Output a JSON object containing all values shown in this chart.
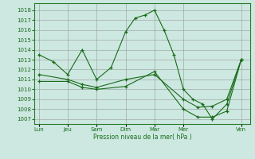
{
  "bg_color": "#cce8e0",
  "grid_color": "#999999",
  "line_color": "#1a6b1a",
  "xlabel": "Pression niveau de la mer( hPa )",
  "yticks": [
    1007,
    1008,
    1009,
    1010,
    1011,
    1012,
    1013,
    1014,
    1015,
    1016,
    1017,
    1018
  ],
  "xtick_labels": [
    "Lun",
    "Jeu",
    "Sam",
    "Dim",
    "Mar",
    "Mer",
    "Ven"
  ],
  "xtick_positions": [
    0,
    1,
    2,
    3,
    4,
    5,
    7
  ],
  "series1_x": [
    0,
    0.5,
    1,
    1.5,
    2,
    2.5,
    3,
    3.33,
    3.67,
    4,
    4.33,
    4.67,
    5,
    5.33,
    5.67,
    6,
    6.5,
    7
  ],
  "series1_y": [
    1013.5,
    1012.8,
    1011.5,
    1014.0,
    1011.0,
    1012.2,
    1015.8,
    1017.2,
    1017.5,
    1018.0,
    1016.0,
    1013.5,
    1010.0,
    1009.0,
    1008.5,
    1007.0,
    1008.5,
    1013.0
  ],
  "series2_x": [
    0,
    1,
    1.5,
    2,
    3,
    4,
    5,
    5.5,
    6,
    6.5,
    7
  ],
  "series2_y": [
    1011.5,
    1011.0,
    1010.5,
    1010.2,
    1011.0,
    1011.5,
    1009.0,
    1008.2,
    1008.3,
    1009.0,
    1013.0
  ],
  "series3_x": [
    0,
    1,
    1.5,
    2,
    3,
    4,
    5,
    5.5,
    6,
    6.5,
    7
  ],
  "series3_y": [
    1010.8,
    1010.8,
    1010.2,
    1010.0,
    1010.3,
    1011.8,
    1008.0,
    1007.2,
    1007.2,
    1007.8,
    1013.0
  ],
  "xlim": [
    -0.15,
    7.3
  ],
  "ylim": [
    1006.5,
    1018.7
  ]
}
